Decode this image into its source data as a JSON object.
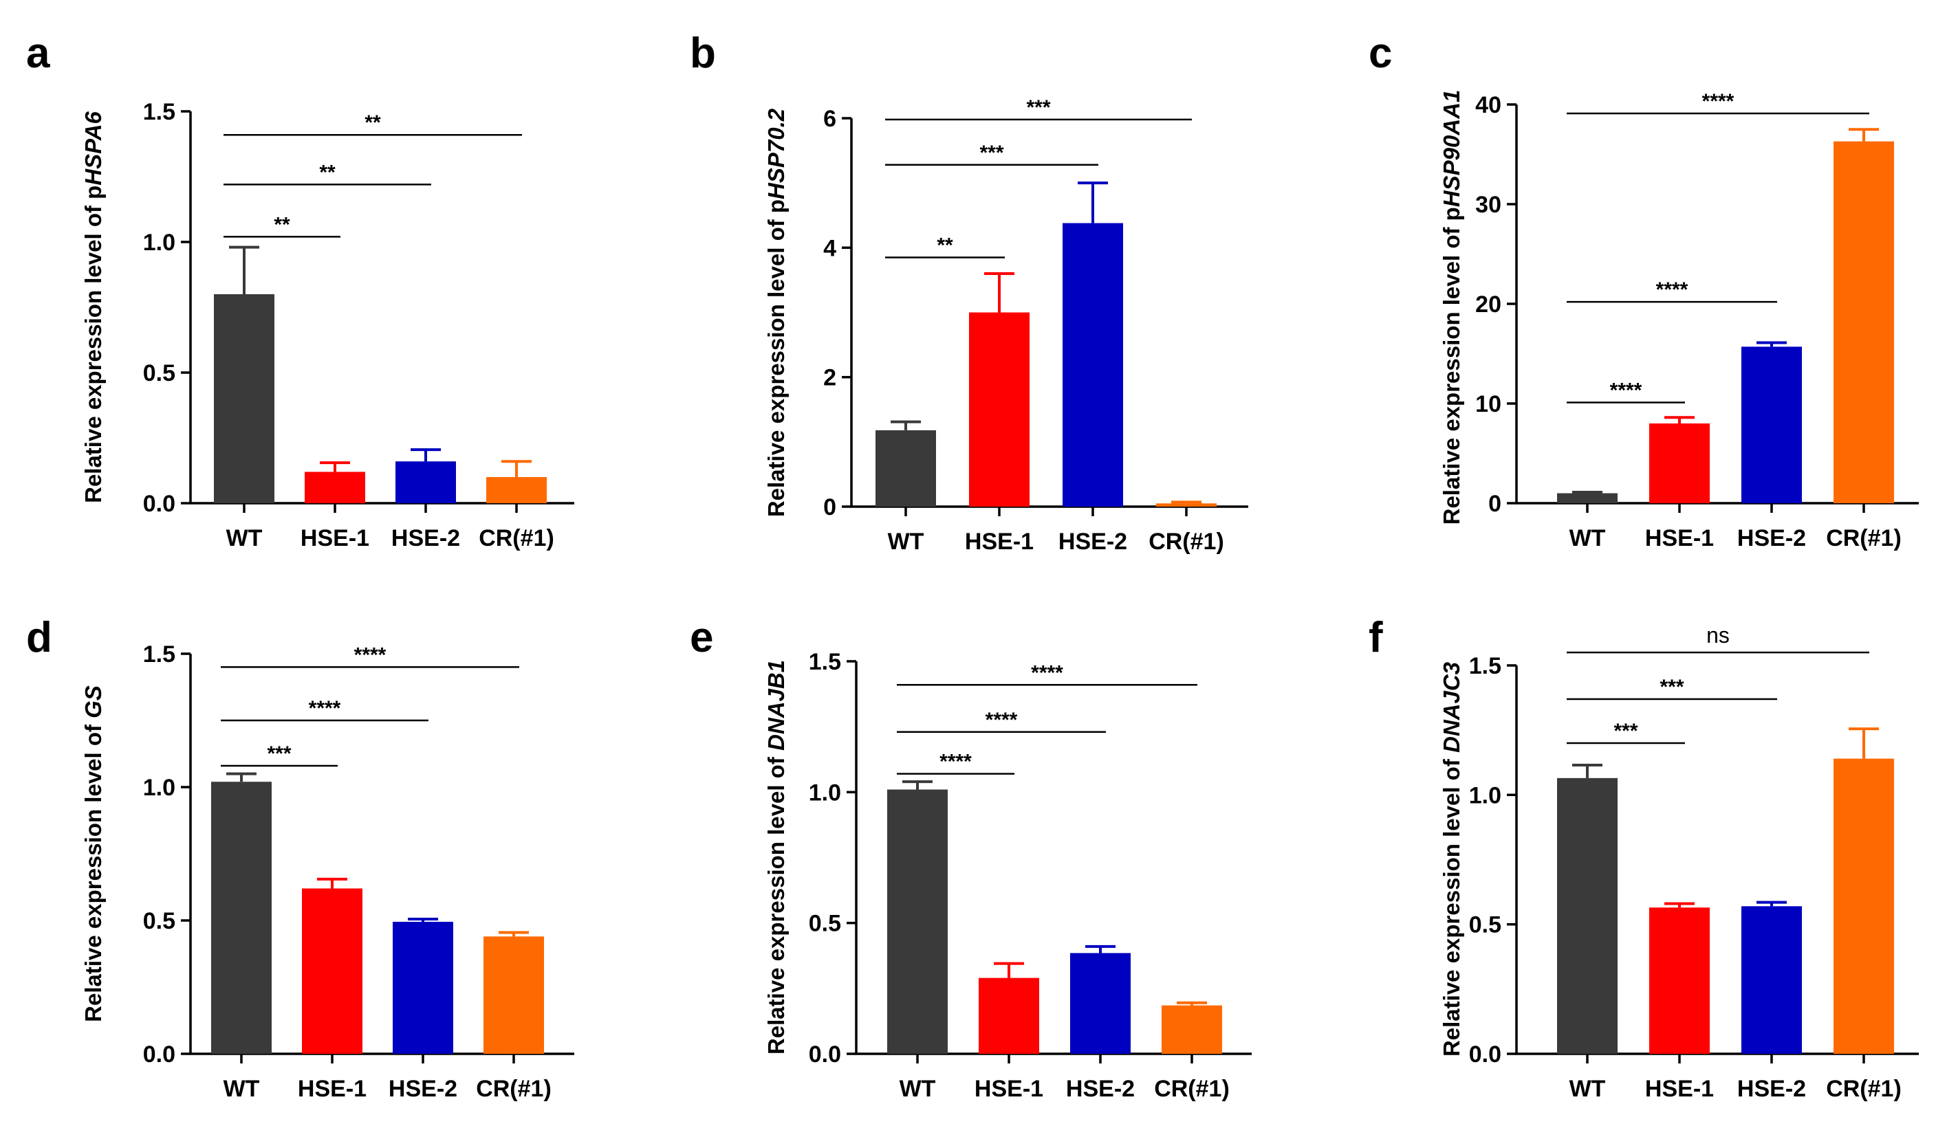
{
  "chart_data": [
    {
      "panel": "a",
      "type": "bar",
      "ylim": [
        0,
        1.5
      ],
      "yticks": [
        "0.0",
        "0.5",
        "1.0",
        "1.5"
      ],
      "ylabel": {
        "prefix": "Relative expression level of p",
        "gene": "HSPA6"
      },
      "categories": [
        "WT",
        "HSE-1",
        "HSE-2",
        "CR(#1)"
      ],
      "values": [
        0.8,
        0.12,
        0.16,
        0.1
      ],
      "errors": [
        0.18,
        0.035,
        0.045,
        0.06
      ],
      "colors": [
        "#3a3a3a",
        "#ff0000",
        "#0000c0",
        "#ff6a00"
      ],
      "significance": [
        {
          "from": 0,
          "to": 1,
          "label": "**",
          "y": 1.02
        },
        {
          "from": 0,
          "to": 2,
          "label": "**",
          "y": 1.22
        },
        {
          "from": 0,
          "to": 3,
          "label": "**",
          "y": 1.41
        }
      ]
    },
    {
      "panel": "b",
      "type": "bar",
      "ylim": [
        0,
        6
      ],
      "yticks": [
        "0",
        "2",
        "4",
        "6"
      ],
      "ylabel": {
        "prefix": "Relative expression level of p",
        "gene": "HSP70.2"
      },
      "categories": [
        "WT",
        "HSE-1",
        "HSE-2",
        "CR(#1)"
      ],
      "values": [
        1.18,
        3.0,
        4.38,
        0.05
      ],
      "errors": [
        0.13,
        0.6,
        0.62,
        0.02
      ],
      "colors": [
        "#3a3a3a",
        "#ff0000",
        "#0000c0",
        "#ff6a00"
      ],
      "significance": [
        {
          "from": 0,
          "to": 1,
          "label": "**",
          "y": 3.85
        },
        {
          "from": 0,
          "to": 2,
          "label": "***",
          "y": 5.28
        },
        {
          "from": 0,
          "to": 3,
          "label": "***",
          "y": 5.98
        }
      ]
    },
    {
      "panel": "c",
      "type": "bar",
      "ylim": [
        0,
        40
      ],
      "yticks": [
        "0",
        "10",
        "20",
        "30",
        "40"
      ],
      "ylabel": {
        "prefix": "Relative expression level of p",
        "gene": "HSP90AA1"
      },
      "categories": [
        "WT",
        "HSE-1",
        "HSE-2",
        "CR(#1)"
      ],
      "values": [
        1.0,
        8.0,
        15.7,
        36.3
      ],
      "errors": [
        0.1,
        0.6,
        0.4,
        1.2
      ],
      "colors": [
        "#3a3a3a",
        "#ff0000",
        "#0000c0",
        "#ff6a00"
      ],
      "significance": [
        {
          "from": 0,
          "to": 1,
          "label": "****",
          "y": 10.1
        },
        {
          "from": 0,
          "to": 2,
          "label": "****",
          "y": 20.2
        },
        {
          "from": 0,
          "to": 3,
          "label": "****",
          "y": 39.1
        }
      ]
    },
    {
      "panel": "d",
      "type": "bar",
      "ylim": [
        0,
        1.5
      ],
      "yticks": [
        "0.0",
        "0.5",
        "1.0",
        "1.5"
      ],
      "ylabel": {
        "prefix": "Relative expression level of ",
        "gene": "GS"
      },
      "categories": [
        "WT",
        "HSE-1",
        "HSE-2",
        "CR(#1)"
      ],
      "values": [
        1.02,
        0.62,
        0.495,
        0.44
      ],
      "errors": [
        0.03,
        0.035,
        0.01,
        0.015
      ],
      "colors": [
        "#3a3a3a",
        "#ff0000",
        "#0000c0",
        "#ff6a00"
      ],
      "significance": [
        {
          "from": 0,
          "to": 1,
          "label": "***",
          "y": 1.08
        },
        {
          "from": 0,
          "to": 2,
          "label": "****",
          "y": 1.25
        },
        {
          "from": 0,
          "to": 3,
          "label": "****",
          "y": 1.45
        }
      ]
    },
    {
      "panel": "e",
      "type": "bar",
      "ylim": [
        0,
        1.5
      ],
      "yticks": [
        "0.0",
        "0.5",
        "1.0",
        "1.5"
      ],
      "ylabel": {
        "prefix": "Relative expression level of ",
        "gene": "DNAJB1"
      },
      "categories": [
        "WT",
        "HSE-1",
        "HSE-2",
        "CR(#1)"
      ],
      "values": [
        1.01,
        0.29,
        0.385,
        0.185
      ],
      "errors": [
        0.03,
        0.055,
        0.025,
        0.01
      ],
      "colors": [
        "#3a3a3a",
        "#ff0000",
        "#0000c0",
        "#ff6a00"
      ],
      "significance": [
        {
          "from": 0,
          "to": 1,
          "label": "****",
          "y": 1.07
        },
        {
          "from": 0,
          "to": 2,
          "label": "****",
          "y": 1.23
        },
        {
          "from": 0,
          "to": 3,
          "label": "****",
          "y": 1.41
        }
      ]
    },
    {
      "panel": "f",
      "type": "bar",
      "ylim": [
        0,
        1.5
      ],
      "yticks": [
        "0.0",
        "0.5",
        "1.0",
        "1.5"
      ],
      "ylabel": {
        "prefix": "Relative expression level of ",
        "gene": "DNAJC3"
      },
      "categories": [
        "WT",
        "HSE-1",
        "HSE-2",
        "CR(#1)"
      ],
      "values": [
        1.065,
        0.565,
        0.57,
        1.14
      ],
      "errors": [
        0.05,
        0.015,
        0.015,
        0.115
      ],
      "colors": [
        "#3a3a3a",
        "#ff0000",
        "#0000c0",
        "#ff6a00"
      ],
      "significance": [
        {
          "from": 0,
          "to": 1,
          "label": "***",
          "y": 1.2
        },
        {
          "from": 0,
          "to": 2,
          "label": "***",
          "y": 1.37
        },
        {
          "from": 0,
          "to": 3,
          "label": "ns",
          "y": 1.55
        }
      ]
    }
  ]
}
